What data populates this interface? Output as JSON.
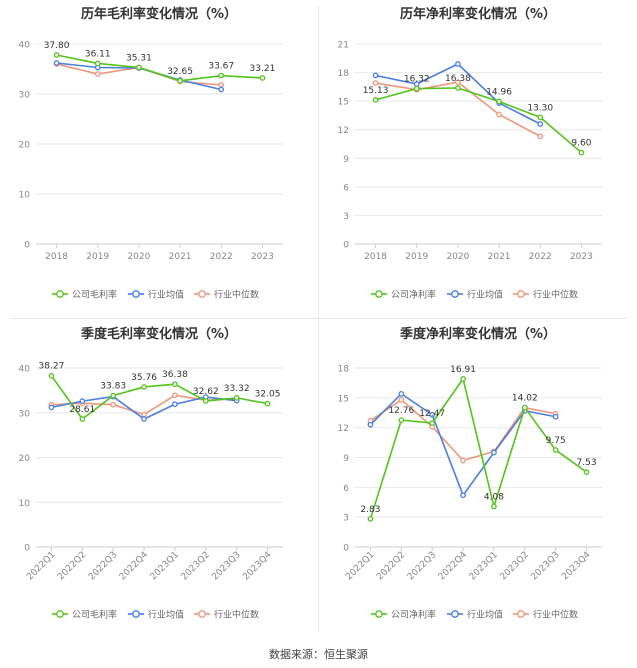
{
  "footer": "数据来源：恒生聚源",
  "legend_labels": {
    "company_gross": "公司毛利率",
    "company_net": "公司净利率",
    "industry_avg": "行业均值",
    "industry_median": "行业中位数"
  },
  "colors": {
    "company": "#52c41a",
    "industry_avg": "#4a7fe0",
    "industry_median": "#f0957a",
    "grid": "#e8e8e8",
    "axis_text": "#888888",
    "title": "#333333"
  },
  "chart_data": [
    {
      "type": "line",
      "title": "历年毛利率变化情况（%）",
      "categories": [
        "2018",
        "2019",
        "2020",
        "2021",
        "2022",
        "2023"
      ],
      "ylim": [
        0,
        40
      ],
      "yticks": [
        0,
        10,
        20,
        30,
        40
      ],
      "grid": true,
      "legend_position": "bottom",
      "series": [
        {
          "name": "公司毛利率",
          "values": [
            37.8,
            36.11,
            35.31,
            32.65,
            33.67,
            33.21
          ],
          "labels": [
            "37.80",
            "36.11",
            "35.31",
            "32.65",
            "33.67",
            "33.21"
          ]
        },
        {
          "name": "行业均值",
          "values": [
            36.2,
            35.3,
            35.2,
            32.8,
            30.9,
            null
          ]
        },
        {
          "name": "行业中位数",
          "values": [
            36.0,
            34.0,
            35.3,
            32.5,
            31.8,
            null
          ]
        }
      ]
    },
    {
      "type": "line",
      "title": "历年净利率变化情况（%）",
      "categories": [
        "2018",
        "2019",
        "2020",
        "2021",
        "2022",
        "2023"
      ],
      "ylim": [
        0,
        21
      ],
      "yticks": [
        0,
        3,
        6,
        9,
        12,
        15,
        18,
        21
      ],
      "grid": true,
      "legend_position": "bottom",
      "series": [
        {
          "name": "公司净利率",
          "values": [
            15.13,
            16.32,
            16.38,
            14.96,
            13.3,
            9.6
          ],
          "labels": [
            "15.13",
            "16.32",
            "16.38",
            "14.96",
            "13.30",
            "9.60"
          ]
        },
        {
          "name": "行业均值",
          "values": [
            17.7,
            16.8,
            18.9,
            14.8,
            12.6,
            null
          ]
        },
        {
          "name": "行业中位数",
          "values": [
            16.9,
            16.2,
            17.0,
            13.6,
            11.3,
            null
          ]
        }
      ]
    },
    {
      "type": "line",
      "title": "季度毛利率变化情况（%）",
      "categories": [
        "2022Q1",
        "2022Q2",
        "2022Q3",
        "2022Q4",
        "2023Q1",
        "2023Q2",
        "2023Q3",
        "2023Q4"
      ],
      "ylim": [
        0,
        40
      ],
      "yticks": [
        0,
        10,
        20,
        30,
        40
      ],
      "grid": true,
      "legend_position": "bottom",
      "series": [
        {
          "name": "公司毛利率",
          "values": [
            38.27,
            28.61,
            33.83,
            35.76,
            36.38,
            32.62,
            33.32,
            32.05
          ],
          "labels": [
            "38.27",
            "28.61",
            "33.83",
            "35.76",
            "36.38",
            "32.62",
            "33.32",
            "32.05"
          ]
        },
        {
          "name": "行业均值",
          "values": [
            31.2,
            32.6,
            33.6,
            28.6,
            31.9,
            33.5,
            32.7,
            null
          ]
        },
        {
          "name": "行业中位数",
          "values": [
            31.8,
            32.1,
            31.8,
            29.6,
            33.9,
            32.8,
            33.1,
            null
          ]
        }
      ]
    },
    {
      "type": "line",
      "title": "季度净利率变化情况（%）",
      "categories": [
        "2022Q1",
        "2022Q2",
        "2022Q3",
        "2022Q4",
        "2023Q1",
        "2023Q2",
        "2023Q3",
        "2023Q4"
      ],
      "ylim": [
        0,
        18
      ],
      "yticks": [
        0,
        3,
        6,
        9,
        12,
        15,
        18
      ],
      "grid": true,
      "legend_position": "bottom",
      "series": [
        {
          "name": "公司净利率",
          "values": [
            2.83,
            12.76,
            12.47,
            16.91,
            4.08,
            14.02,
            9.75,
            7.53
          ],
          "labels": [
            "2.83",
            "12.76",
            "12.47",
            "16.91",
            "4.08",
            "14.02",
            "9.75",
            "7.53"
          ]
        },
        {
          "name": "行业均值",
          "values": [
            12.3,
            15.4,
            13.3,
            5.2,
            9.5,
            13.7,
            13.1,
            null
          ]
        },
        {
          "name": "行业中位数",
          "values": [
            12.7,
            14.8,
            12.1,
            8.7,
            9.6,
            14.0,
            13.4,
            null
          ]
        }
      ]
    }
  ]
}
